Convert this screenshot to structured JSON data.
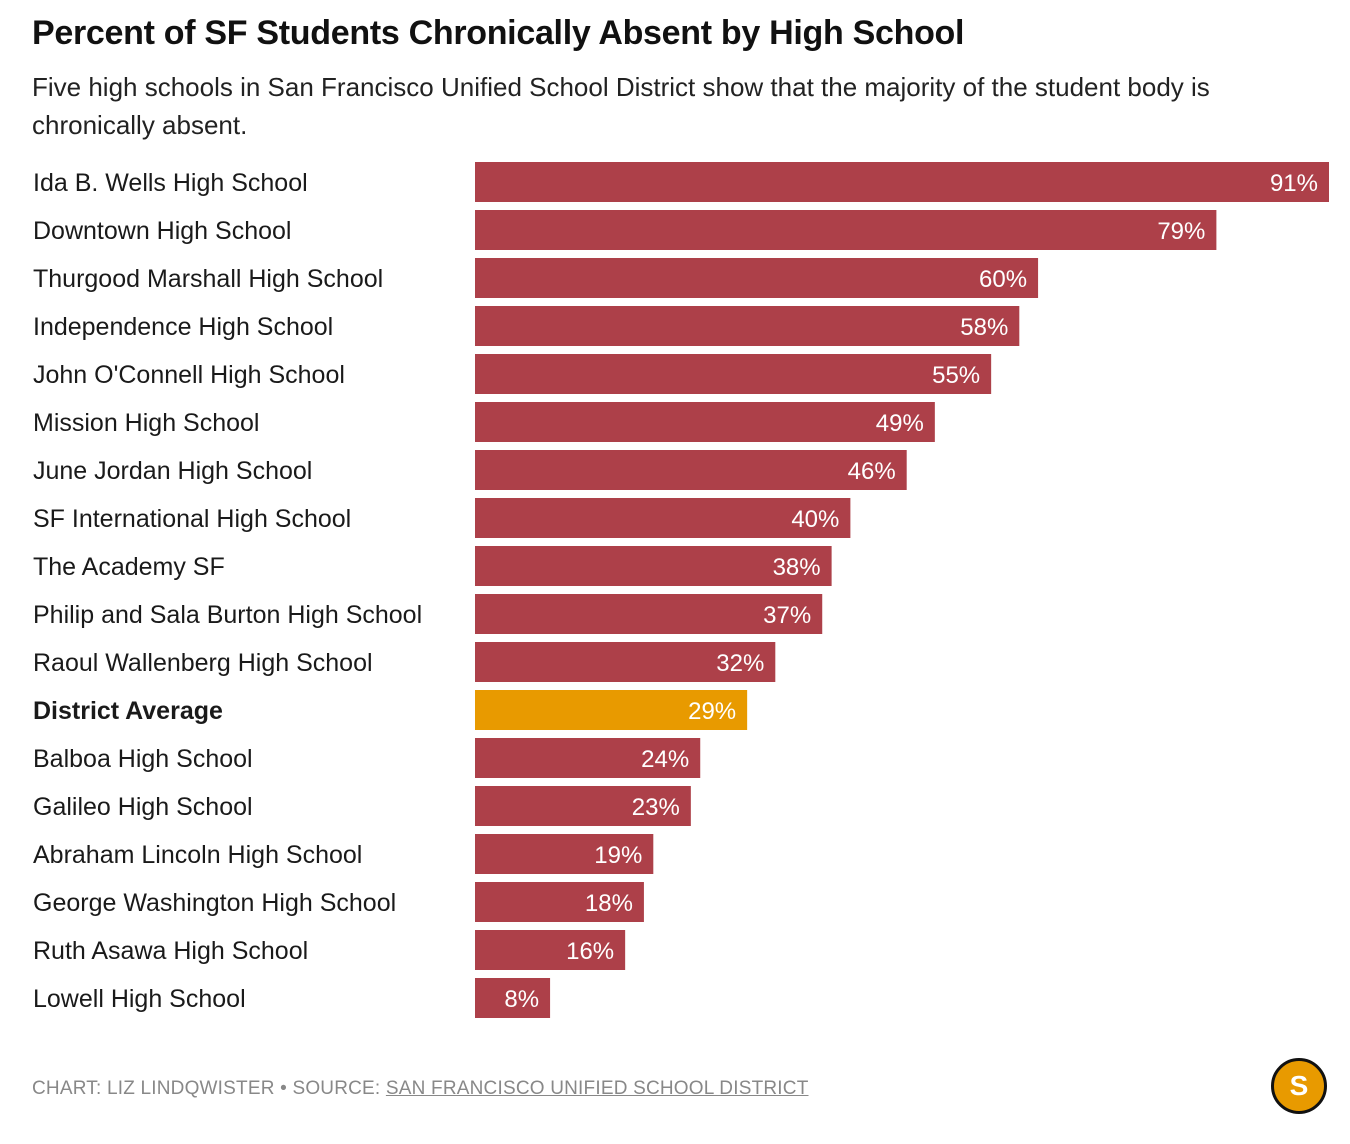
{
  "header": {
    "title": "Percent of SF Students Chronically Absent by High School",
    "subtitle": "Five high schools in San Francisco Unified School District show that the majority of the student body is chronically absent."
  },
  "colors": {
    "bar": "#ad4049",
    "highlight": "#e89a00",
    "text": "#1a1a1a"
  },
  "chart_data": {
    "type": "bar",
    "orientation": "horizontal",
    "categories": [
      "Ida B. Wells High School",
      "Downtown High School",
      "Thurgood Marshall High School",
      "Independence High School",
      "John O'Connell High School",
      "Mission High School",
      "June Jordan High School",
      "SF International High School",
      "The Academy SF",
      "Philip and Sala Burton High School",
      "Raoul Wallenberg High School",
      "District Average",
      "Balboa High School",
      "Galileo High School",
      "Abraham Lincoln High School",
      "George Washington High School",
      "Ruth Asawa High School",
      "Lowell High School"
    ],
    "values": [
      91,
      79,
      60,
      58,
      55,
      49,
      46,
      40,
      38,
      37,
      32,
      29,
      24,
      23,
      19,
      18,
      16,
      8
    ],
    "data_labels": [
      "91%",
      "79%",
      "60%",
      "58%",
      "55%",
      "49%",
      "46%",
      "40%",
      "38%",
      "37%",
      "32%",
      "29%",
      "24%",
      "23%",
      "19%",
      "18%",
      "16%",
      "8%"
    ],
    "highlight_category": "District Average",
    "xlim": [
      0,
      91
    ],
    "grid": false
  },
  "footer": {
    "credit": "CHART: LIZ LINDQWISTER • SOURCE: ",
    "source_link": "SAN FRANCISCO UNIFIED SCHOOL DISTRICT"
  },
  "logo": {
    "letter": "S",
    "icon": "sf-standard-logo-icon"
  }
}
